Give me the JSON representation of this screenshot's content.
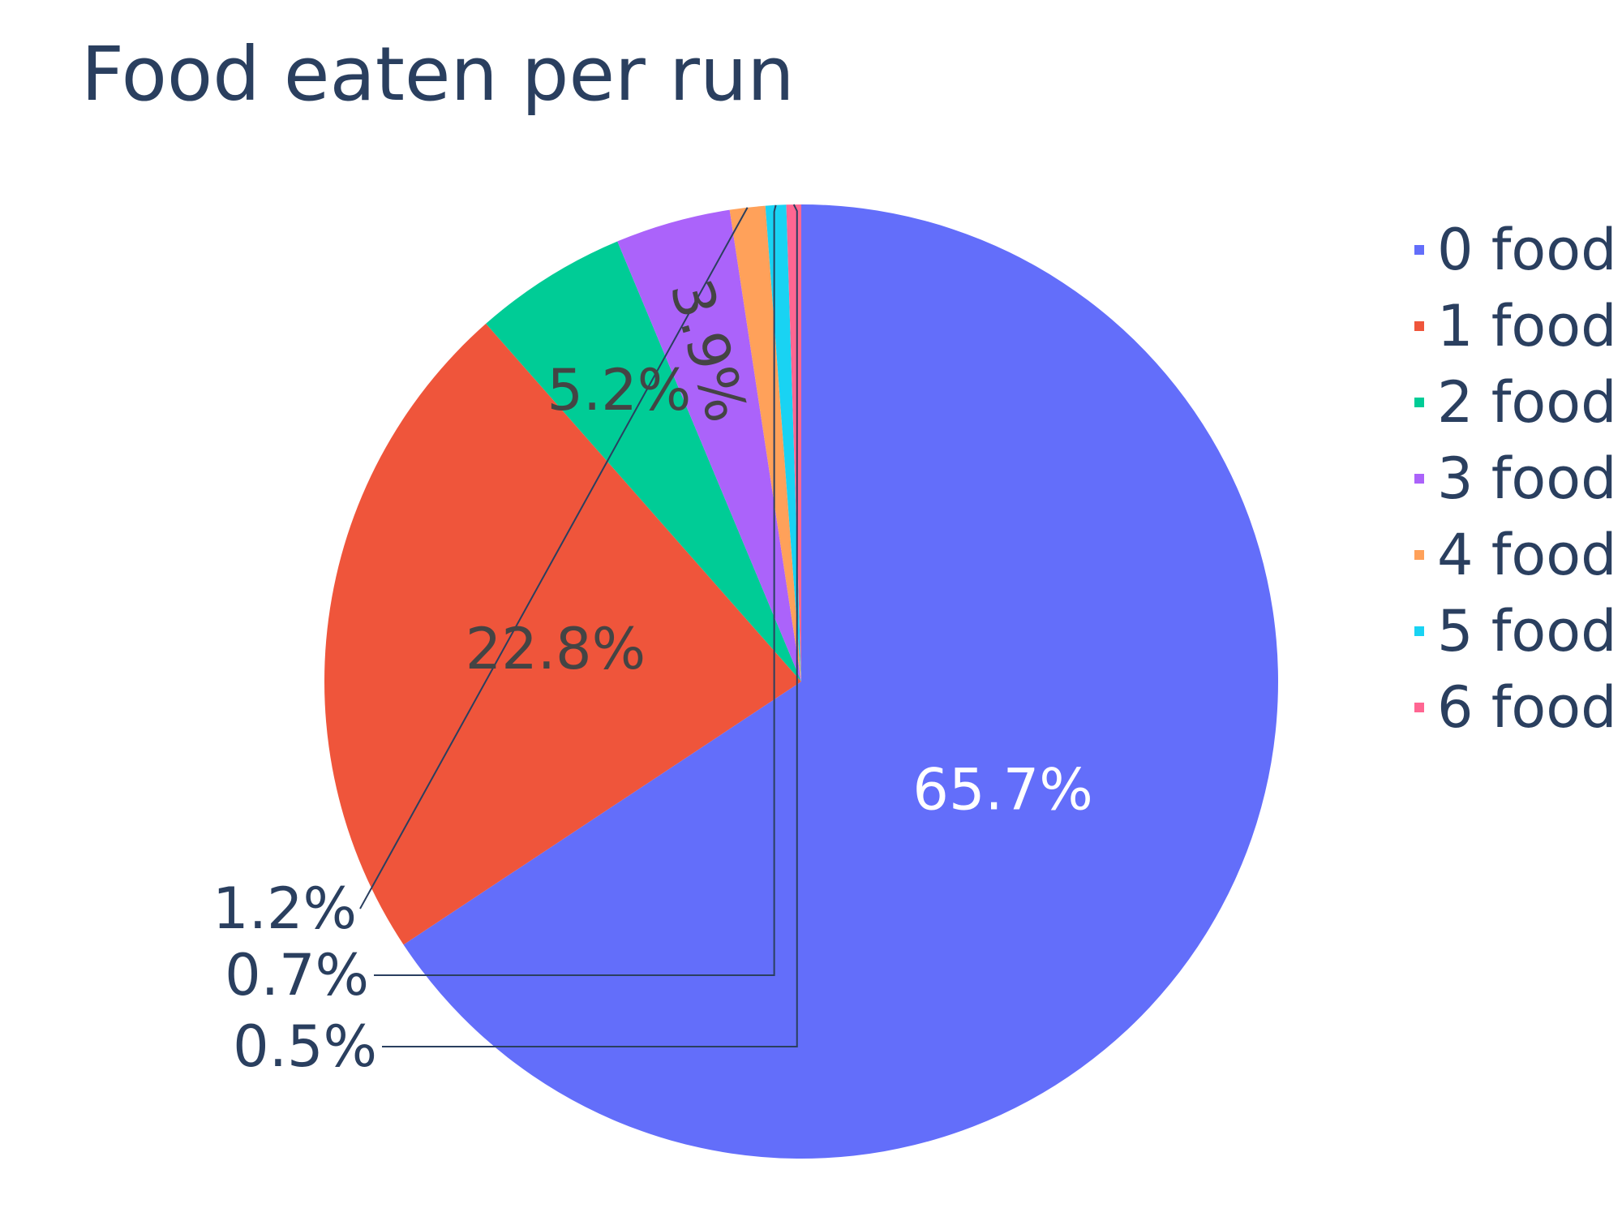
{
  "chart_data": {
    "type": "pie",
    "title": "Food eaten per run",
    "categories": [
      "0 food",
      "1 food",
      "2 food",
      "3 food",
      "4 food",
      "5 food",
      "6 food"
    ],
    "values": [
      65.7,
      22.8,
      5.2,
      3.9,
      1.2,
      0.7,
      0.5
    ],
    "labels": [
      "65.7%",
      "22.8%",
      "5.2%",
      "3.9%",
      "1.2%",
      "0.7%",
      "0.5%"
    ],
    "colors": [
      "#636efa",
      "#ef553b",
      "#00cc96",
      "#ab63fa",
      "#ffa15a",
      "#19d3f3",
      "#ff6692"
    ],
    "legend": {
      "position": "right"
    },
    "direction": "clockwise",
    "start": "top"
  }
}
